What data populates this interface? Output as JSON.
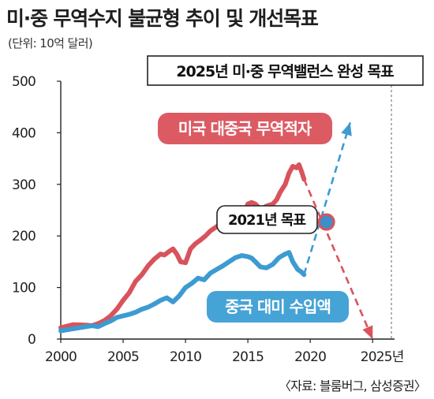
{
  "header": {
    "title": "미·중 무역수지 불균형 추이 및 개선목표",
    "unit": "(단위: 10억 달러)"
  },
  "footer": {
    "source": "〈자료: 블룸버그, 삼성증권〉"
  },
  "colors": {
    "us": "#d9535c",
    "china": "#3d9bd1",
    "us_box": "#dc5b63",
    "china_box": "#46a3d6",
    "target_dot": "#3d8ec9"
  },
  "chart_data": {
    "type": "line",
    "title": "미·중 무역수지 불균형 추이 및 개선목표",
    "xlabel": "",
    "ylabel": "(단위: 10억 달러)",
    "xlim": [
      2000,
      2026
    ],
    "ylim": [
      0,
      500
    ],
    "yticks": [
      "0",
      "100",
      "200",
      "300",
      "400",
      "500"
    ],
    "xticks": [
      "2000",
      "2005",
      "2010",
      "2015",
      "2020",
      "2025년"
    ],
    "grid": false,
    "series": [
      {
        "name": "미국 대중국 무역적자",
        "x": [
          2000,
          2000.5,
          2001,
          2002,
          2002.5,
          2003,
          2003.5,
          2004,
          2004.5,
          2005,
          2005.5,
          2006,
          2006.5,
          2007,
          2007.5,
          2008,
          2008.3,
          2008.7,
          2009,
          2009.3,
          2009.6,
          2010,
          2010.4,
          2010.8,
          2011.2,
          2011.6,
          2012,
          2012.5,
          2013,
          2013.5,
          2014,
          2014.4,
          2014.8,
          2015,
          2015.3,
          2015.6,
          2016,
          2016.5,
          2017,
          2017.3,
          2017.6,
          2018,
          2018.3,
          2018.6,
          2018.9,
          2019.1,
          2019.3,
          2019.5
        ],
        "values": [
          22,
          25,
          28,
          27,
          26,
          30,
          36,
          45,
          58,
          75,
          90,
          112,
          125,
          142,
          155,
          165,
          163,
          170,
          175,
          165,
          150,
          148,
          175,
          185,
          192,
          200,
          210,
          218,
          228,
          238,
          248,
          255,
          250,
          262,
          265,
          262,
          252,
          258,
          262,
          270,
          285,
          300,
          322,
          335,
          332,
          338,
          325,
          310
        ]
      },
      {
        "name": "중국 대미 수입액",
        "x": [
          2000,
          2001,
          2002,
          2002.5,
          2003,
          2003.5,
          2004,
          2004.5,
          2005,
          2005.5,
          2006,
          2006.5,
          2007,
          2007.5,
          2008,
          2008.5,
          2009,
          2009.5,
          2010,
          2010.5,
          2011,
          2011.5,
          2012,
          2012.5,
          2013,
          2013.5,
          2014,
          2014.5,
          2015,
          2015.3,
          2015.6,
          2016,
          2016.5,
          2017,
          2017.5,
          2018,
          2018.3,
          2018.6,
          2019,
          2019.3,
          2019.5
        ],
        "values": [
          16,
          20,
          24,
          26,
          24,
          30,
          35,
          42,
          45,
          48,
          52,
          58,
          62,
          68,
          75,
          80,
          72,
          84,
          100,
          108,
          118,
          115,
          128,
          135,
          142,
          150,
          158,
          162,
          160,
          157,
          150,
          140,
          138,
          145,
          158,
          165,
          168,
          150,
          135,
          130,
          125
        ]
      }
    ],
    "projections": [
      {
        "name": "미국 대중국 무역적자",
        "x": [
          2019.5,
          2025
        ],
        "values": [
          310,
          0
        ]
      },
      {
        "name": "중국 대미 수입액",
        "x": [
          2019.5,
          2023.2
        ],
        "values": [
          125,
          420
        ]
      }
    ],
    "markers": [
      {
        "label": "2021년 목표",
        "x": 2021.3,
        "value": 227
      }
    ],
    "annotations": {
      "target_label": "2025년 미·중 무역밸런스 완성 목표",
      "us_label": "미국 대중국 무역적자",
      "china_label": "중국 대미 수입액",
      "target_2021": "2021년 목표"
    }
  }
}
